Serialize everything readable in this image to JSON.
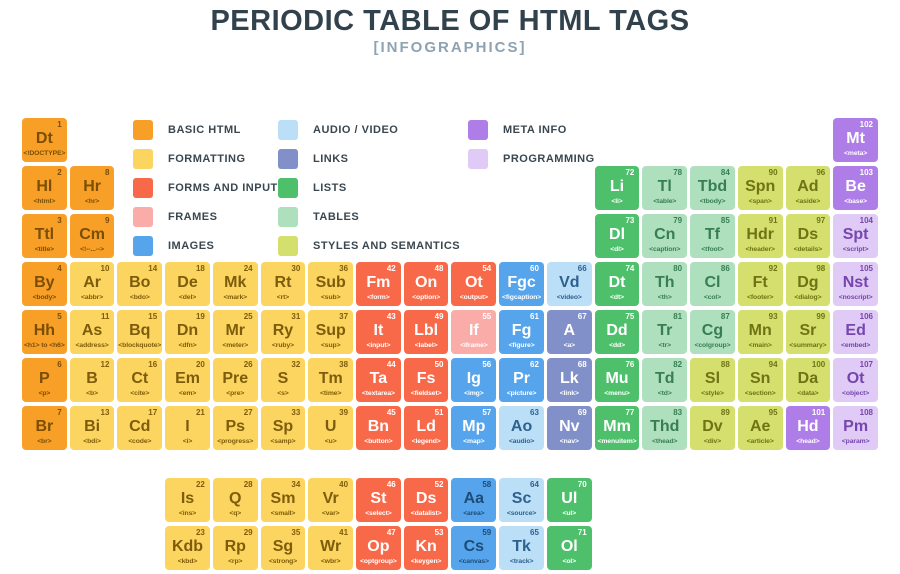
{
  "title": "PERIODIC TABLE OF HTML TAGS",
  "subtitle": "[INFOGRAPHICS]",
  "colors": {
    "title_text": "#31424d",
    "subtitle_text": "#8da3b2",
    "legend_text": "#3a4750",
    "background": "#ffffff"
  },
  "categories": {
    "basic": {
      "label": "BASIC HTML",
      "bg": "#f89f27",
      "fg": "#7a4e04"
    },
    "formatting": {
      "label": "FORMATTING",
      "bg": "#fbd55f",
      "fg": "#7e5c0b"
    },
    "forms": {
      "label": "FORMS AND INPUT",
      "bg": "#f8694a",
      "fg": "#ffffff"
    },
    "frames": {
      "label": "FRAMES",
      "bg": "#f9aca8",
      "fg": "#ffffff"
    },
    "images": {
      "label": "IMAGES",
      "bg": "#56a5ec",
      "fg": "#ffffff"
    },
    "av": {
      "label": "AUDIO / VIDEO",
      "bg": "#bcdff8",
      "fg": "#2d618f"
    },
    "links": {
      "label": "LINKS",
      "bg": "#8290c9",
      "fg": "#ffffff"
    },
    "lists": {
      "label": "LISTS",
      "bg": "#4ec06c",
      "fg": "#ffffff"
    },
    "tables": {
      "label": "TABLES",
      "bg": "#afe0be",
      "fg": "#387d53"
    },
    "styles": {
      "label": "STYLES AND SEMANTICS",
      "bg": "#d4df6e",
      "fg": "#6e7414"
    },
    "meta": {
      "label": "META INFO",
      "bg": "#ae7de8",
      "fg": "#ffffff"
    },
    "programming": {
      "label": "PROGRAMMING",
      "bg": "#dfcbf5",
      "fg": "#7645ad"
    }
  },
  "legend_columns": [
    [
      "basic",
      "formatting",
      "forms",
      "frames",
      "images"
    ],
    [
      "av",
      "links",
      "lists",
      "tables",
      "styles"
    ],
    [
      "meta",
      "programming"
    ]
  ],
  "cells": [
    {
      "n": 1,
      "sym": "Dt",
      "tag": "<!DOCTYPE>",
      "cat": "basic",
      "row": 1,
      "col": 1
    },
    {
      "n": 102,
      "sym": "Mt",
      "tag": "<meta>",
      "cat": "meta",
      "row": 1,
      "col": 18
    },
    {
      "n": 2,
      "sym": "Hl",
      "tag": "<html>",
      "cat": "basic",
      "row": 2,
      "col": 1
    },
    {
      "n": 8,
      "sym": "Hr",
      "tag": "<hr>",
      "cat": "basic",
      "row": 2,
      "col": 2
    },
    {
      "n": 72,
      "sym": "Li",
      "tag": "<li>",
      "cat": "lists",
      "row": 2,
      "col": 13
    },
    {
      "n": 78,
      "sym": "Tl",
      "tag": "<table>",
      "cat": "tables",
      "row": 2,
      "col": 14
    },
    {
      "n": 84,
      "sym": "Tbd",
      "tag": "<tbody>",
      "cat": "tables",
      "row": 2,
      "col": 15
    },
    {
      "n": 90,
      "sym": "Spn",
      "tag": "<span>",
      "cat": "styles",
      "row": 2,
      "col": 16
    },
    {
      "n": 96,
      "sym": "Ad",
      "tag": "<aside>",
      "cat": "styles",
      "row": 2,
      "col": 17
    },
    {
      "n": 103,
      "sym": "Be",
      "tag": "<base>",
      "cat": "meta",
      "row": 2,
      "col": 18
    },
    {
      "n": 3,
      "sym": "Ttl",
      "tag": "<title>",
      "cat": "basic",
      "row": 3,
      "col": 1
    },
    {
      "n": 9,
      "sym": "Cm",
      "tag": "<!--...-->",
      "cat": "basic",
      "row": 3,
      "col": 2
    },
    {
      "n": 73,
      "sym": "Dl",
      "tag": "<dl>",
      "cat": "lists",
      "row": 3,
      "col": 13
    },
    {
      "n": 79,
      "sym": "Cn",
      "tag": "<caption>",
      "cat": "tables",
      "row": 3,
      "col": 14
    },
    {
      "n": 85,
      "sym": "Tf",
      "tag": "<tfoot>",
      "cat": "tables",
      "row": 3,
      "col": 15
    },
    {
      "n": 91,
      "sym": "Hdr",
      "tag": "<header>",
      "cat": "styles",
      "row": 3,
      "col": 16
    },
    {
      "n": 97,
      "sym": "Ds",
      "tag": "<details>",
      "cat": "styles",
      "row": 3,
      "col": 17
    },
    {
      "n": 104,
      "sym": "Spt",
      "tag": "<script>",
      "cat": "programming",
      "row": 3,
      "col": 18
    },
    {
      "n": 4,
      "sym": "By",
      "tag": "<body>",
      "cat": "basic",
      "row": 4,
      "col": 1
    },
    {
      "n": 10,
      "sym": "Ar",
      "tag": "<abbr>",
      "cat": "formatting",
      "row": 4,
      "col": 2
    },
    {
      "n": 14,
      "sym": "Bo",
      "tag": "<bdo>",
      "cat": "formatting",
      "row": 4,
      "col": 3
    },
    {
      "n": 18,
      "sym": "De",
      "tag": "<del>",
      "cat": "formatting",
      "row": 4,
      "col": 4
    },
    {
      "n": 24,
      "sym": "Mk",
      "tag": "<mark>",
      "cat": "formatting",
      "row": 4,
      "col": 5
    },
    {
      "n": 30,
      "sym": "Rt",
      "tag": "<rt>",
      "cat": "formatting",
      "row": 4,
      "col": 6
    },
    {
      "n": 36,
      "sym": "Sub",
      "tag": "<sub>",
      "cat": "formatting",
      "row": 4,
      "col": 7
    },
    {
      "n": 42,
      "sym": "Fm",
      "tag": "<form>",
      "cat": "forms",
      "row": 4,
      "col": 8
    },
    {
      "n": 48,
      "sym": "On",
      "tag": "<option>",
      "cat": "forms",
      "row": 4,
      "col": 9
    },
    {
      "n": 54,
      "sym": "Ot",
      "tag": "<output>",
      "cat": "forms",
      "row": 4,
      "col": 10
    },
    {
      "n": 60,
      "sym": "Fgc",
      "tag": "<figcaption>",
      "cat": "images",
      "row": 4,
      "col": 11
    },
    {
      "n": 66,
      "sym": "Vd",
      "tag": "<video>",
      "cat": "av",
      "row": 4,
      "col": 12
    },
    {
      "n": 74,
      "sym": "Dt",
      "tag": "<dt>",
      "cat": "lists",
      "row": 4,
      "col": 13
    },
    {
      "n": 80,
      "sym": "Th",
      "tag": "<th>",
      "cat": "tables",
      "row": 4,
      "col": 14
    },
    {
      "n": 86,
      "sym": "Cl",
      "tag": "<col>",
      "cat": "tables",
      "row": 4,
      "col": 15
    },
    {
      "n": 92,
      "sym": "Ft",
      "tag": "<footer>",
      "cat": "styles",
      "row": 4,
      "col": 16
    },
    {
      "n": 98,
      "sym": "Dg",
      "tag": "<dialog>",
      "cat": "styles",
      "row": 4,
      "col": 17
    },
    {
      "n": 105,
      "sym": "Nst",
      "tag": "<noscript>",
      "cat": "programming",
      "row": 4,
      "col": 18
    },
    {
      "n": 5,
      "sym": "Hh",
      "tag": "<h1> to <h6>",
      "cat": "basic",
      "row": 5,
      "col": 1
    },
    {
      "n": 11,
      "sym": "As",
      "tag": "<address>",
      "cat": "formatting",
      "row": 5,
      "col": 2
    },
    {
      "n": 15,
      "sym": "Bq",
      "tag": "<blockquote>",
      "cat": "formatting",
      "row": 5,
      "col": 3
    },
    {
      "n": 19,
      "sym": "Dn",
      "tag": "<dfn>",
      "cat": "formatting",
      "row": 5,
      "col": 4
    },
    {
      "n": 25,
      "sym": "Mr",
      "tag": "<meter>",
      "cat": "formatting",
      "row": 5,
      "col": 5
    },
    {
      "n": 31,
      "sym": "Ry",
      "tag": "<ruby>",
      "cat": "formatting",
      "row": 5,
      "col": 6
    },
    {
      "n": 37,
      "sym": "Sup",
      "tag": "<sup>",
      "cat": "formatting",
      "row": 5,
      "col": 7
    },
    {
      "n": 43,
      "sym": "It",
      "tag": "<input>",
      "cat": "forms",
      "row": 5,
      "col": 8
    },
    {
      "n": 49,
      "sym": "Lbl",
      "tag": "<label>",
      "cat": "forms",
      "row": 5,
      "col": 9
    },
    {
      "n": 55,
      "sym": "If",
      "tag": "<iframe>",
      "cat": "frames",
      "row": 5,
      "col": 10
    },
    {
      "n": 61,
      "sym": "Fg",
      "tag": "<figure>",
      "cat": "images",
      "row": 5,
      "col": 11
    },
    {
      "n": 67,
      "sym": "A",
      "tag": "<a>",
      "cat": "links",
      "row": 5,
      "col": 12
    },
    {
      "n": 75,
      "sym": "Dd",
      "tag": "<dd>",
      "cat": "lists",
      "row": 5,
      "col": 13
    },
    {
      "n": 81,
      "sym": "Tr",
      "tag": "<tr>",
      "cat": "tables",
      "row": 5,
      "col": 14
    },
    {
      "n": 87,
      "sym": "Cg",
      "tag": "<colgroup>",
      "cat": "tables",
      "row": 5,
      "col": 15
    },
    {
      "n": 93,
      "sym": "Mn",
      "tag": "<main>",
      "cat": "styles",
      "row": 5,
      "col": 16
    },
    {
      "n": 99,
      "sym": "Sr",
      "tag": "<summary>",
      "cat": "styles",
      "row": 5,
      "col": 17
    },
    {
      "n": 106,
      "sym": "Ed",
      "tag": "<embed>",
      "cat": "programming",
      "row": 5,
      "col": 18
    },
    {
      "n": 6,
      "sym": "P",
      "tag": "<p>",
      "cat": "basic",
      "row": 6,
      "col": 1
    },
    {
      "n": 12,
      "sym": "B",
      "tag": "<b>",
      "cat": "formatting",
      "row": 6,
      "col": 2
    },
    {
      "n": 16,
      "sym": "Ct",
      "tag": "<cite>",
      "cat": "formatting",
      "row": 6,
      "col": 3
    },
    {
      "n": 20,
      "sym": "Em",
      "tag": "<em>",
      "cat": "formatting",
      "row": 6,
      "col": 4
    },
    {
      "n": 26,
      "sym": "Pre",
      "tag": "<pre>",
      "cat": "formatting",
      "row": 6,
      "col": 5
    },
    {
      "n": 32,
      "sym": "S",
      "tag": "<s>",
      "cat": "formatting",
      "row": 6,
      "col": 6
    },
    {
      "n": 38,
      "sym": "Tm",
      "tag": "<time>",
      "cat": "formatting",
      "row": 6,
      "col": 7
    },
    {
      "n": 44,
      "sym": "Ta",
      "tag": "<textarea>",
      "cat": "forms",
      "row": 6,
      "col": 8
    },
    {
      "n": 50,
      "sym": "Fs",
      "tag": "<fieldset>",
      "cat": "forms",
      "row": 6,
      "col": 9
    },
    {
      "n": 56,
      "sym": "Ig",
      "tag": "<img>",
      "cat": "images",
      "row": 6,
      "col": 10
    },
    {
      "n": 62,
      "sym": "Pr",
      "tag": "<picture>",
      "cat": "images",
      "row": 6,
      "col": 11
    },
    {
      "n": 68,
      "sym": "Lk",
      "tag": "<link>",
      "cat": "links",
      "row": 6,
      "col": 12
    },
    {
      "n": 76,
      "sym": "Mu",
      "tag": "<menu>",
      "cat": "lists",
      "row": 6,
      "col": 13
    },
    {
      "n": 82,
      "sym": "Td",
      "tag": "<td>",
      "cat": "tables",
      "row": 6,
      "col": 14
    },
    {
      "n": 88,
      "sym": "Sl",
      "tag": "<style>",
      "cat": "styles",
      "row": 6,
      "col": 15
    },
    {
      "n": 94,
      "sym": "Sn",
      "tag": "<section>",
      "cat": "styles",
      "row": 6,
      "col": 16
    },
    {
      "n": 100,
      "sym": "Da",
      "tag": "<data>",
      "cat": "styles",
      "row": 6,
      "col": 17
    },
    {
      "n": 107,
      "sym": "Ot",
      "tag": "<object>",
      "cat": "programming",
      "row": 6,
      "col": 18
    },
    {
      "n": 7,
      "sym": "Br",
      "tag": "<br>",
      "cat": "basic",
      "row": 7,
      "col": 1
    },
    {
      "n": 13,
      "sym": "Bi",
      "tag": "<bdi>",
      "cat": "formatting",
      "row": 7,
      "col": 2
    },
    {
      "n": 17,
      "sym": "Cd",
      "tag": "<code>",
      "cat": "formatting",
      "row": 7,
      "col": 3
    },
    {
      "n": 21,
      "sym": "I",
      "tag": "<i>",
      "cat": "formatting",
      "row": 7,
      "col": 4
    },
    {
      "n": 27,
      "sym": "Ps",
      "tag": "<progress>",
      "cat": "formatting",
      "row": 7,
      "col": 5
    },
    {
      "n": 33,
      "sym": "Sp",
      "tag": "<samp>",
      "cat": "formatting",
      "row": 7,
      "col": 6
    },
    {
      "n": 39,
      "sym": "U",
      "tag": "<u>",
      "cat": "formatting",
      "row": 7,
      "col": 7
    },
    {
      "n": 45,
      "sym": "Bn",
      "tag": "<button>",
      "cat": "forms",
      "row": 7,
      "col": 8
    },
    {
      "n": 51,
      "sym": "Ld",
      "tag": "<legend>",
      "cat": "forms",
      "row": 7,
      "col": 9
    },
    {
      "n": 57,
      "sym": "Mp",
      "tag": "<map>",
      "cat": "images",
      "row": 7,
      "col": 10
    },
    {
      "n": 63,
      "sym": "Ao",
      "tag": "<audio>",
      "cat": "av",
      "row": 7,
      "col": 11
    },
    {
      "n": 69,
      "sym": "Nv",
      "tag": "<nav>",
      "cat": "links",
      "row": 7,
      "col": 12
    },
    {
      "n": 77,
      "sym": "Mm",
      "tag": "<menuitem>",
      "cat": "lists",
      "row": 7,
      "col": 13
    },
    {
      "n": 83,
      "sym": "Thd",
      "tag": "<thead>",
      "cat": "tables",
      "row": 7,
      "col": 14
    },
    {
      "n": 89,
      "sym": "Dv",
      "tag": "<div>",
      "cat": "styles",
      "row": 7,
      "col": 15
    },
    {
      "n": 95,
      "sym": "Ae",
      "tag": "<article>",
      "cat": "styles",
      "row": 7,
      "col": 16
    },
    {
      "n": 101,
      "sym": "Hd",
      "tag": "<head>",
      "cat": "meta",
      "row": 7,
      "col": 17
    },
    {
      "n": 108,
      "sym": "Pm",
      "tag": "<param>",
      "cat": "programming",
      "row": 7,
      "col": 18
    },
    {
      "n": 22,
      "sym": "Is",
      "tag": "<ins>",
      "cat": "formatting",
      "row": 8,
      "col": 4
    },
    {
      "n": 28,
      "sym": "Q",
      "tag": "<q>",
      "cat": "formatting",
      "row": 8,
      "col": 5
    },
    {
      "n": 34,
      "sym": "Sm",
      "tag": "<small>",
      "cat": "formatting",
      "row": 8,
      "col": 6
    },
    {
      "n": 40,
      "sym": "Vr",
      "tag": "<var>",
      "cat": "formatting",
      "row": 8,
      "col": 7
    },
    {
      "n": 46,
      "sym": "St",
      "tag": "<select>",
      "cat": "forms",
      "row": 8,
      "col": 8
    },
    {
      "n": 52,
      "sym": "Ds",
      "tag": "<datalist>",
      "cat": "forms",
      "row": 8,
      "col": 9
    },
    {
      "n": 58,
      "sym": "Aa",
      "tag": "<area>",
      "cat": "images",
      "row": 8,
      "col": 10,
      "fg": "#1d4c77"
    },
    {
      "n": 64,
      "sym": "Sc",
      "tag": "<source>",
      "cat": "av",
      "row": 8,
      "col": 11
    },
    {
      "n": 70,
      "sym": "Ul",
      "tag": "<ul>",
      "cat": "lists",
      "row": 8,
      "col": 12
    },
    {
      "n": 23,
      "sym": "Kdb",
      "tag": "<kbd>",
      "cat": "formatting",
      "row": 9,
      "col": 4
    },
    {
      "n": 29,
      "sym": "Rp",
      "tag": "<rp>",
      "cat": "formatting",
      "row": 9,
      "col": 5
    },
    {
      "n": 35,
      "sym": "Sg",
      "tag": "<strong>",
      "cat": "formatting",
      "row": 9,
      "col": 6
    },
    {
      "n": 41,
      "sym": "Wr",
      "tag": "<wbr>",
      "cat": "formatting",
      "row": 9,
      "col": 7
    },
    {
      "n": 47,
      "sym": "Op",
      "tag": "<optgroup>",
      "cat": "forms",
      "row": 9,
      "col": 8
    },
    {
      "n": 53,
      "sym": "Kn",
      "tag": "<keygen>",
      "cat": "forms",
      "row": 9,
      "col": 9
    },
    {
      "n": 59,
      "sym": "Cs",
      "tag": "<canvas>",
      "cat": "images",
      "row": 9,
      "col": 10,
      "fg": "#1d4c77"
    },
    {
      "n": 65,
      "sym": "Tk",
      "tag": "<track>",
      "cat": "av",
      "row": 9,
      "col": 11
    },
    {
      "n": 71,
      "sym": "Ol",
      "tag": "<ol>",
      "cat": "lists",
      "row": 9,
      "col": 12
    }
  ]
}
